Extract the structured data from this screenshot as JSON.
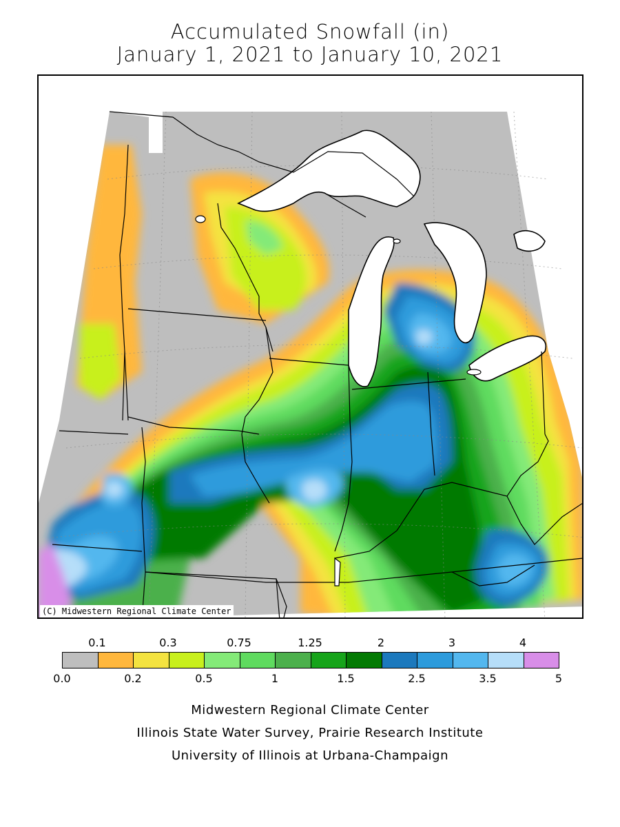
{
  "title": "Accumulated Snowfall (in)",
  "subtitle": "January 1, 2021 to January 10, 2021",
  "copyright": "(C) Midwestern Regional Climate Center",
  "legend": {
    "upper_labels": [
      "0.1",
      "0.3",
      "0.75",
      "1.25",
      "2",
      "3",
      "4"
    ],
    "lower_labels": [
      "0.0",
      "0.2",
      "0.5",
      "1",
      "1.5",
      "2.5",
      "3.5",
      "5"
    ],
    "colors": [
      "#bebebe",
      "#ffb73d",
      "#f4e340",
      "#c8f01d",
      "#84ea78",
      "#5fdb5f",
      "#4cb04c",
      "#16a41a",
      "#037a03",
      "#1c79bd",
      "#2d9bdc",
      "#53b7ee",
      "#b6def9",
      "#d88ee8"
    ]
  },
  "footer": {
    "line1": "Midwestern Regional Climate Center",
    "line2": "Illinois State Water Survey, Prairie Research Institute",
    "line3": "University of Illinois at Urbana-Champaign"
  }
}
